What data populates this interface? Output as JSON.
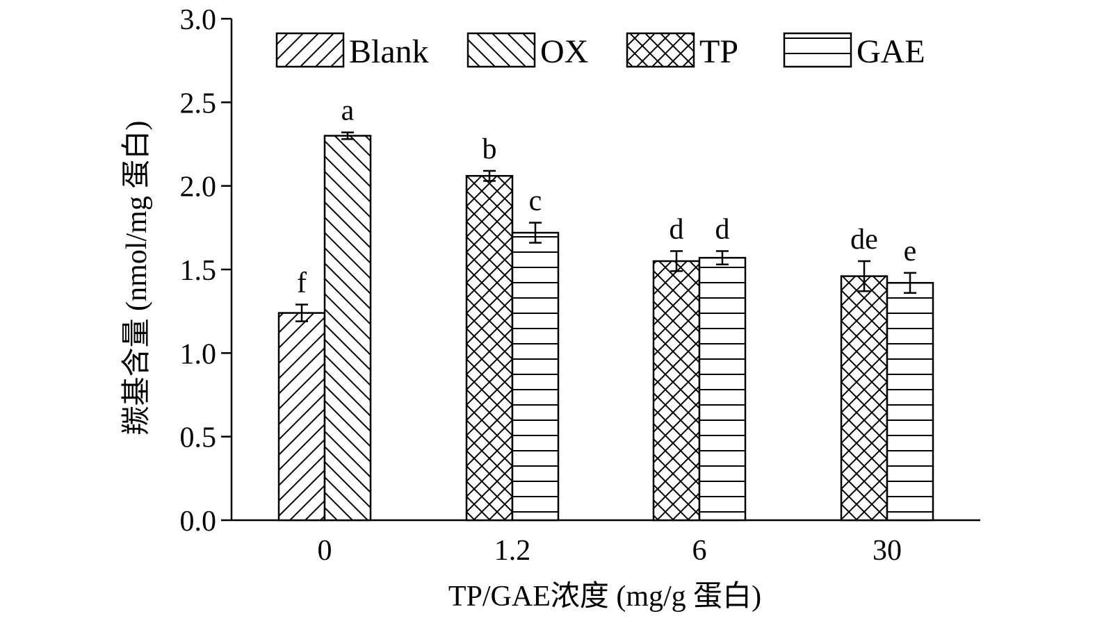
{
  "chart_data": {
    "type": "bar",
    "categories": [
      "0",
      "1.2",
      "6",
      "30"
    ],
    "series": [
      {
        "name": "Blank",
        "pattern": "diag-up",
        "values": [
          1.24,
          null,
          null,
          null
        ],
        "errors": [
          0.05,
          null,
          null,
          null
        ],
        "sig": [
          "f",
          null,
          null,
          null
        ]
      },
      {
        "name": "OX",
        "pattern": "diag-down",
        "values": [
          2.3,
          null,
          null,
          null
        ],
        "errors": [
          0.02,
          null,
          null,
          null
        ],
        "sig": [
          "a",
          null,
          null,
          null
        ]
      },
      {
        "name": "TP",
        "pattern": "cross",
        "values": [
          null,
          2.06,
          1.55,
          1.46
        ],
        "errors": [
          null,
          0.03,
          0.06,
          0.09
        ],
        "sig": [
          null,
          "b",
          "d",
          "de"
        ]
      },
      {
        "name": "GAE",
        "pattern": "horizontal",
        "values": [
          null,
          1.72,
          1.57,
          1.42
        ],
        "errors": [
          null,
          0.06,
          0.04,
          0.06
        ],
        "sig": [
          null,
          "c",
          "d",
          "e"
        ]
      }
    ],
    "title": "",
    "xlabel": "TP/GAE浓度 (mg/g 蛋白)",
    "ylabel": "羰基含量 (nmol/mg 蛋白)",
    "ylim": [
      0,
      3.0
    ],
    "yticks": [
      "0.0",
      "0.5",
      "1.0",
      "1.5",
      "2.0",
      "2.5",
      "3.0"
    ],
    "grid": false,
    "legend_position": "top"
  }
}
